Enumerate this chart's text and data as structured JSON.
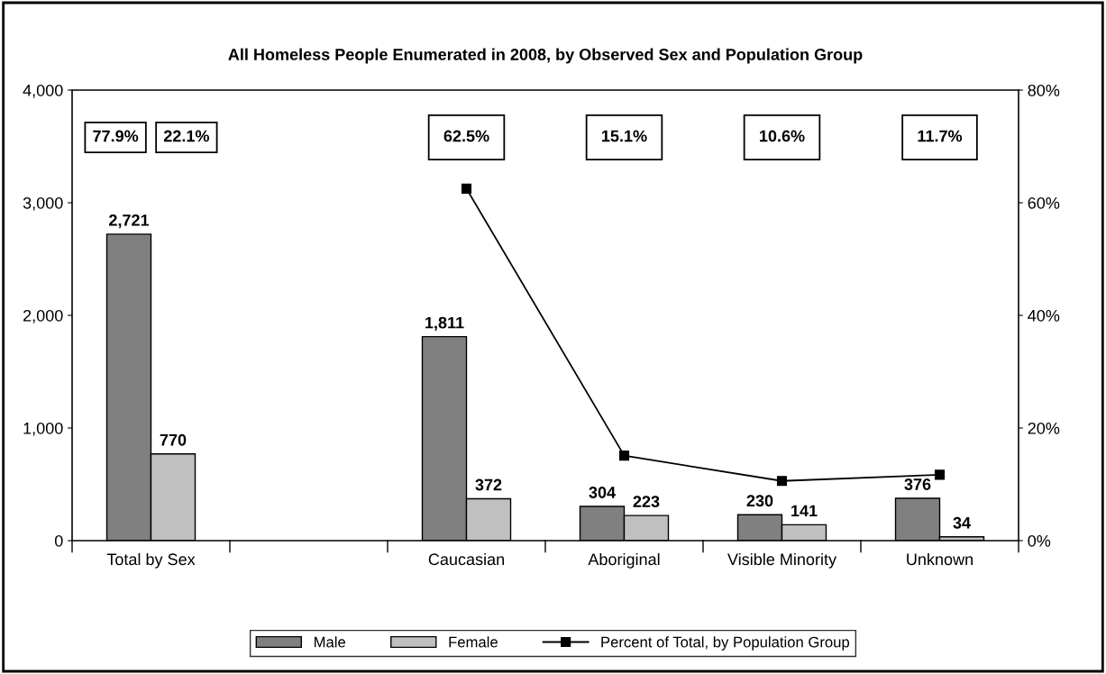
{
  "chart_data": {
    "type": "bar",
    "title": "All Homeless People Enumerated in 2008, by Observed Sex and Population Group",
    "categories": [
      "Total by Sex",
      null,
      "Caucasian",
      "Aboriginal",
      "Visible Minority",
      "Unknown"
    ],
    "series": [
      {
        "name": "Male",
        "color": "#808080",
        "values": [
          2721,
          null,
          1811,
          304,
          230,
          376
        ],
        "value_labels": [
          "2,721",
          null,
          "1,811",
          "304",
          "230",
          "376"
        ]
      },
      {
        "name": "Female",
        "color": "#c0c0c0",
        "values": [
          770,
          null,
          372,
          223,
          141,
          34
        ],
        "value_labels": [
          "770",
          null,
          "372",
          "223",
          "141",
          "34"
        ]
      },
      {
        "name": "Percent of Total, by Population Group",
        "type": "line",
        "axis": "y2",
        "color": "#000000",
        "marker": "square",
        "values": [
          null,
          null,
          62.5,
          15.1,
          10.6,
          11.7
        ]
      }
    ],
    "annotations": [
      "77.9%",
      "22.1%",
      "62.5%",
      "15.1%",
      "10.6%",
      "11.7%"
    ],
    "ylim": [
      0,
      4000
    ],
    "yticks": [
      {
        "value": 0,
        "label": "0"
      },
      {
        "value": 1000,
        "label": "1,000"
      },
      {
        "value": 2000,
        "label": "2,000"
      },
      {
        "value": 3000,
        "label": "3,000"
      },
      {
        "value": 4000,
        "label": "4,000"
      }
    ],
    "y2lim": [
      0,
      80
    ],
    "y2ticks": [
      {
        "value": 0,
        "label": "0%"
      },
      {
        "value": 20,
        "label": "20%"
      },
      {
        "value": 40,
        "label": "40%"
      },
      {
        "value": 60,
        "label": "60%"
      },
      {
        "value": 80,
        "label": "80%"
      }
    ],
    "grid": false,
    "legend": "bottom"
  }
}
